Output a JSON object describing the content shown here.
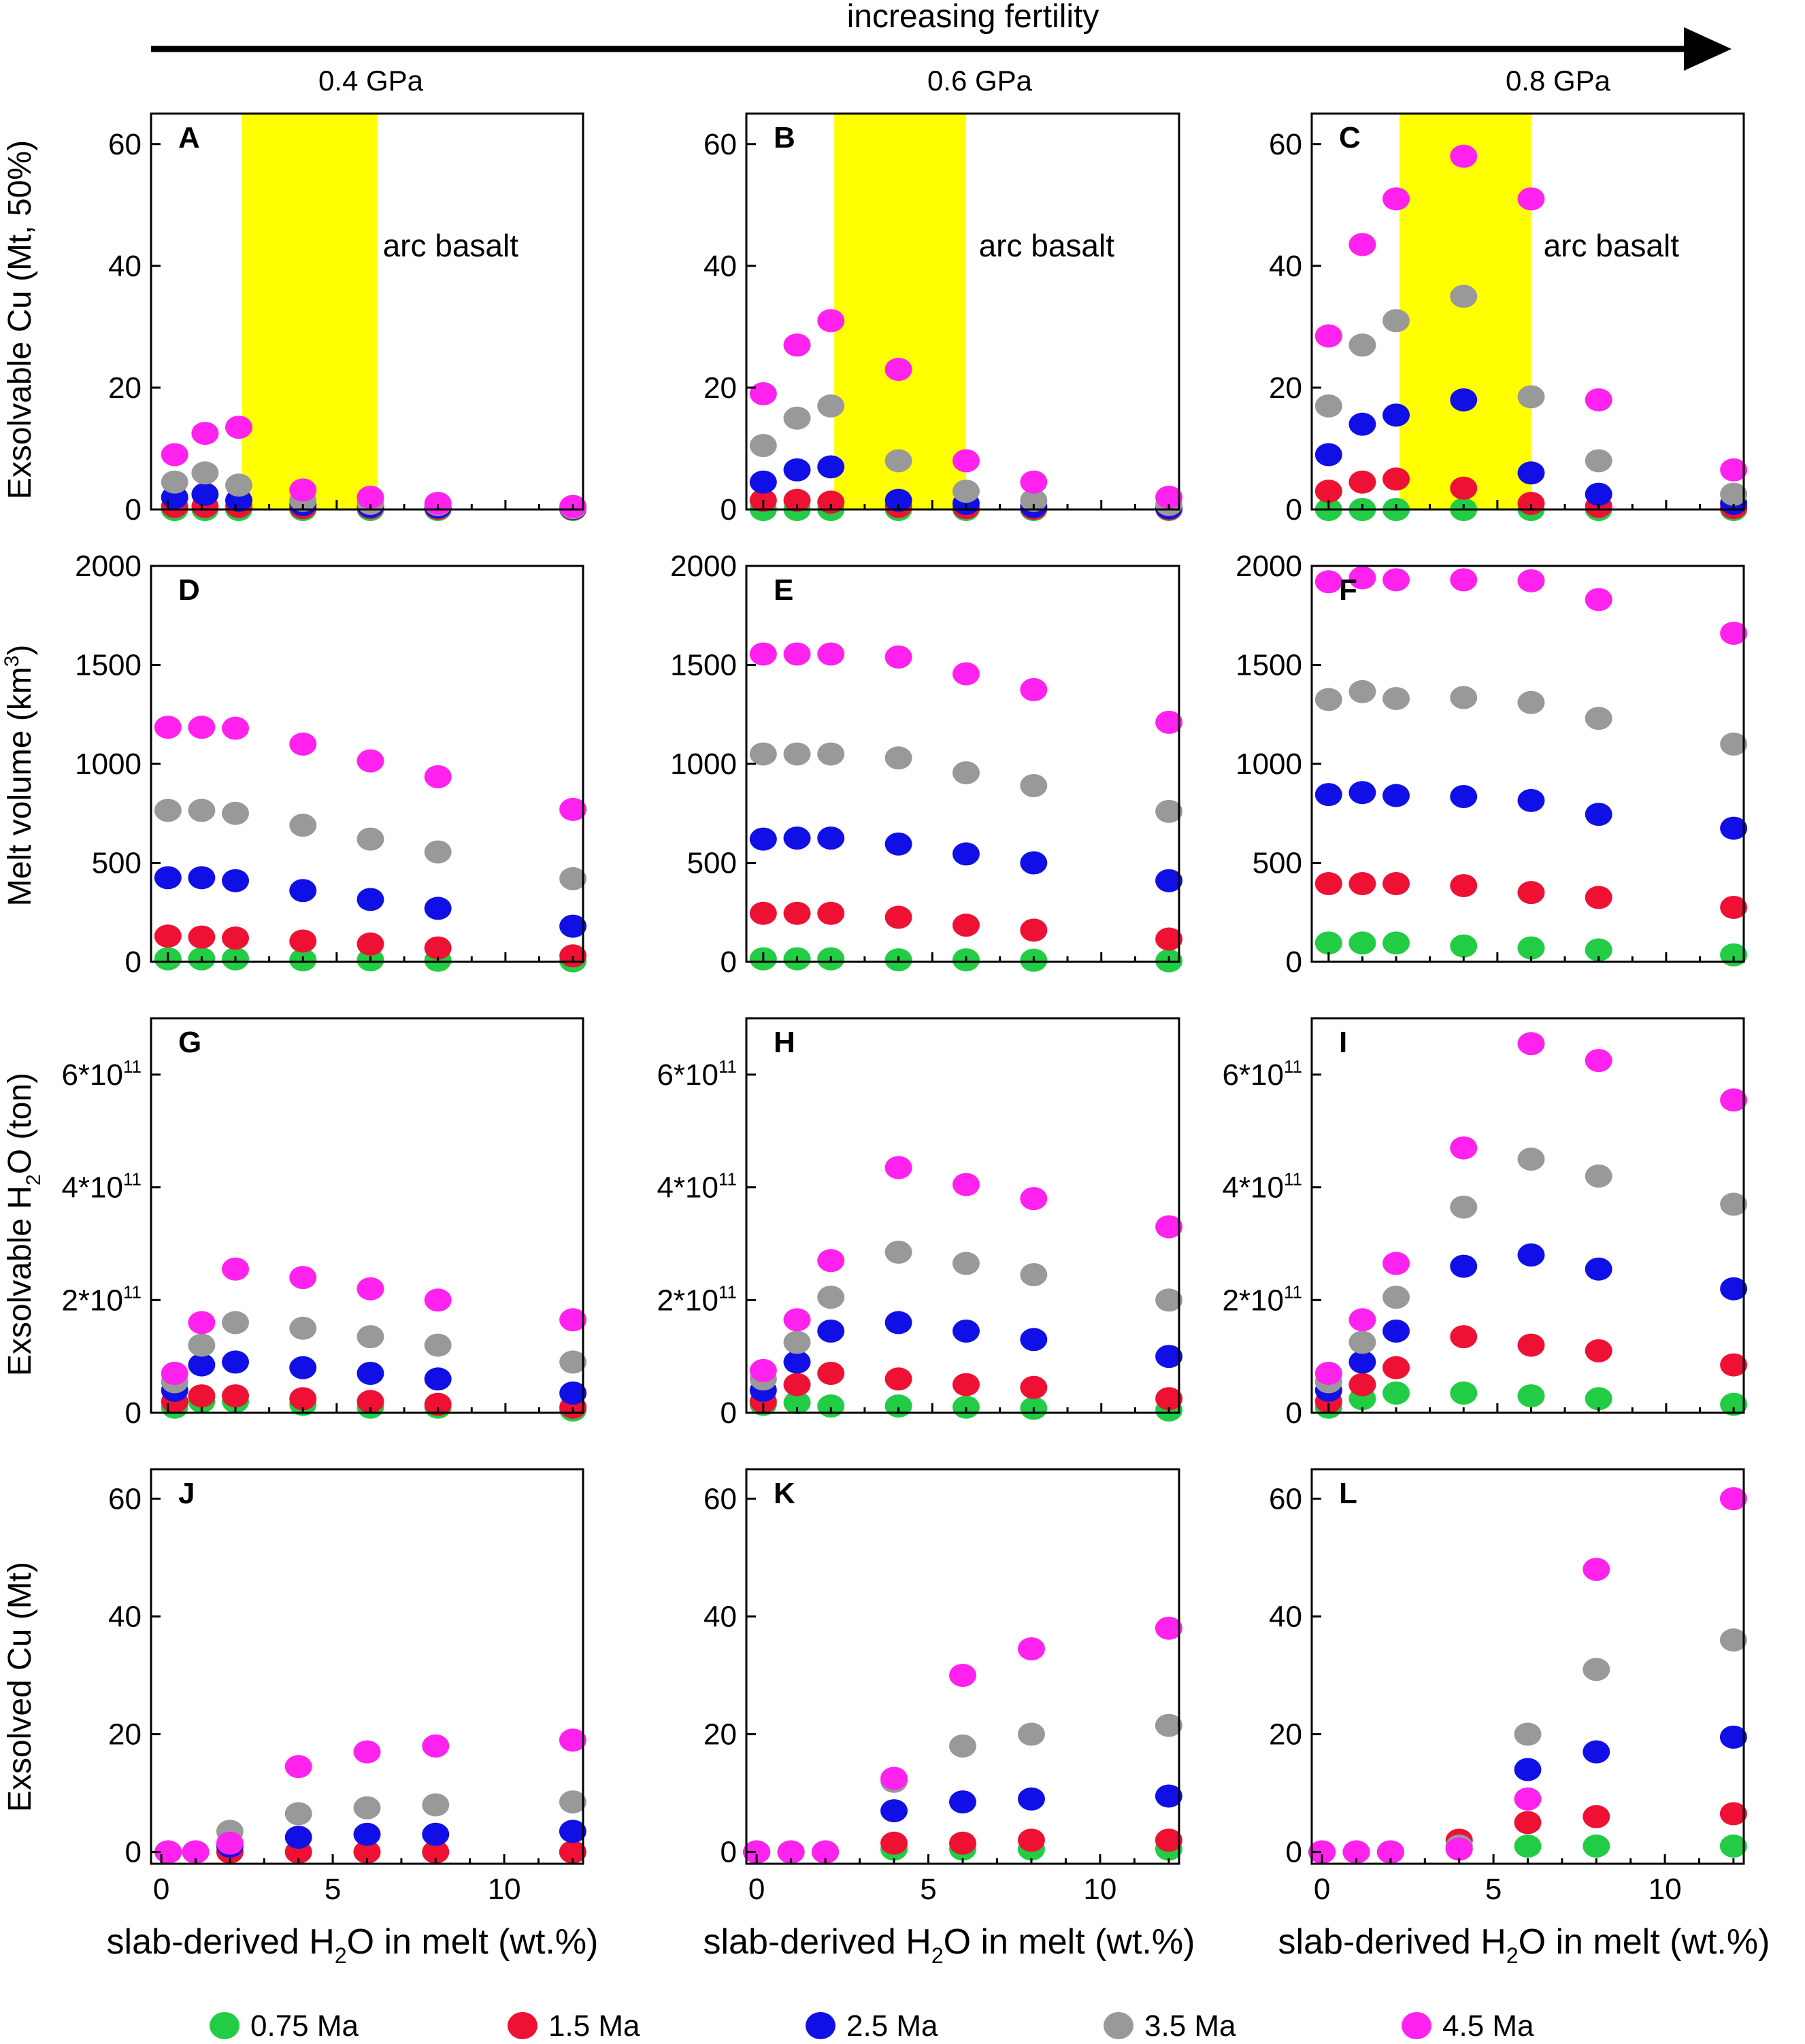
{
  "header": {
    "arrow_label": "increasing fertility",
    "pressures": [
      "0.4 GPa",
      "0.6 GPa",
      "0.8 GPa"
    ]
  },
  "row_labels": {
    "exsolvable_cu": "Exsolvable Cu (Mt, 50%)",
    "melt_volume_main": "Melt volume (km",
    "melt_volume_sup": "3",
    "melt_volume_end": ")",
    "exsolvable_h2o_main": "Exsolvable H",
    "exsolvable_h2o_sub": "2",
    "exsolvable_h2o_end": "O (ton)",
    "exsolved_cu": "Exsolved Cu (Mt)"
  },
  "x_axis_label": {
    "pre": "slab-derived H",
    "sub": "2",
    "post": "O in melt (wt.%)"
  },
  "annotation_text": "arc basalt",
  "legend": [
    {
      "label": "0.75 Ma",
      "color": "#22cc44"
    },
    {
      "label": "1.5 Ma",
      "color": "#ee1133"
    },
    {
      "label": "2.5 Ma",
      "color": "#1010e6"
    },
    {
      "label": "3.5 Ma",
      "color": "#999999"
    },
    {
      "label": "4.5 Ma",
      "color": "#ff22ee"
    }
  ],
  "highlight_color": "#ffff00",
  "chart_data": [
    {
      "id": "A",
      "type": "scatter",
      "row": 0,
      "col": 0,
      "ylim": [
        0,
        65
      ],
      "yticks": [
        0,
        20,
        40,
        60
      ],
      "xlim": [
        -0.5,
        12.3
      ],
      "xticks": [
        0,
        5,
        10
      ],
      "band": [
        2.2,
        6.2
      ],
      "x": [
        0.2,
        1.1,
        2.1,
        4,
        6,
        8,
        12
      ],
      "series": [
        {
          "name": "0.75 Ma",
          "values": [
            0,
            0,
            0,
            0,
            0,
            0,
            0
          ]
        },
        {
          "name": "1.5 Ma",
          "values": [
            0.5,
            0.5,
            0.5,
            0.3,
            0.3,
            0.2,
            0.1
          ]
        },
        {
          "name": "2.5 Ma",
          "values": [
            2,
            2.5,
            1.5,
            0.8,
            0.5,
            0.4,
            0.2
          ]
        },
        {
          "name": "3.5 Ma",
          "values": [
            4.5,
            6,
            4,
            1.5,
            1,
            0.8,
            0.3
          ]
        },
        {
          "name": "4.5 Ma",
          "values": [
            9,
            12.5,
            13.5,
            3.2,
            2,
            1,
            0.5
          ]
        }
      ]
    },
    {
      "id": "B",
      "type": "scatter",
      "row": 0,
      "col": 1,
      "ylim": [
        0,
        65
      ],
      "yticks": [
        0,
        20,
        40,
        60
      ],
      "xlim": [
        -0.5,
        12.3
      ],
      "xticks": [
        0,
        5,
        10
      ],
      "band": [
        2.1,
        6
      ],
      "x": [
        0,
        1,
        2,
        4,
        6,
        8,
        12
      ],
      "series": [
        {
          "name": "0.75 Ma",
          "values": [
            0,
            0,
            0,
            0,
            0,
            0,
            0
          ]
        },
        {
          "name": "1.5 Ma",
          "values": [
            1.5,
            1.5,
            1.2,
            0.5,
            0.3,
            0.2,
            0.1
          ]
        },
        {
          "name": "2.5 Ma",
          "values": [
            4.5,
            6.5,
            7,
            1.5,
            1,
            0.5,
            0.3
          ]
        },
        {
          "name": "3.5 Ma",
          "values": [
            10.5,
            15,
            17,
            8,
            3,
            1.5,
            0.8
          ]
        },
        {
          "name": "4.5 Ma",
          "values": [
            19,
            27,
            31,
            23,
            8,
            4.5,
            2
          ]
        }
      ]
    },
    {
      "id": "C",
      "type": "scatter",
      "row": 0,
      "col": 2,
      "ylim": [
        0,
        65
      ],
      "yticks": [
        0,
        20,
        40,
        60
      ],
      "xlim": [
        -0.5,
        12.3
      ],
      "xticks": [
        0,
        5,
        10
      ],
      "band": [
        2.1,
        6
      ],
      "x": [
        0,
        1,
        2,
        4,
        6,
        8,
        12
      ],
      "series": [
        {
          "name": "0.75 Ma",
          "values": [
            0,
            0,
            0,
            0,
            0,
            0,
            0
          ]
        },
        {
          "name": "1.5 Ma",
          "values": [
            3,
            4.5,
            5,
            3.5,
            1,
            0.5,
            0.3
          ]
        },
        {
          "name": "2.5 Ma",
          "values": [
            9,
            14,
            15.5,
            18,
            6,
            2.5,
            1
          ]
        },
        {
          "name": "3.5 Ma",
          "values": [
            17,
            27,
            31,
            35,
            18.5,
            8,
            2.5
          ]
        },
        {
          "name": "4.5 Ma",
          "values": [
            28.5,
            43.5,
            51,
            58,
            51,
            18,
            6.5
          ]
        }
      ]
    },
    {
      "id": "D",
      "type": "scatter",
      "row": 1,
      "col": 0,
      "ylim": [
        0,
        2000
      ],
      "yticks": [
        0,
        500,
        1000,
        1500,
        2000
      ],
      "xlim": [
        -0.5,
        12.3
      ],
      "xticks": [
        0,
        5,
        10
      ],
      "x": [
        0,
        1,
        2,
        4,
        6,
        8,
        12
      ],
      "series": [
        {
          "name": "0.75 Ma",
          "values": [
            15,
            15,
            15,
            10,
            10,
            8,
            5
          ]
        },
        {
          "name": "1.5 Ma",
          "values": [
            130,
            125,
            120,
            105,
            90,
            70,
            30
          ]
        },
        {
          "name": "2.5 Ma",
          "values": [
            425,
            425,
            410,
            360,
            315,
            270,
            180
          ]
        },
        {
          "name": "3.5 Ma",
          "values": [
            765,
            765,
            750,
            690,
            620,
            555,
            420
          ]
        },
        {
          "name": "4.5 Ma",
          "values": [
            1185,
            1185,
            1180,
            1100,
            1015,
            935,
            770
          ]
        }
      ]
    },
    {
      "id": "E",
      "type": "scatter",
      "row": 1,
      "col": 1,
      "ylim": [
        0,
        2000
      ],
      "yticks": [
        0,
        500,
        1000,
        1500,
        2000
      ],
      "xlim": [
        -0.5,
        12.3
      ],
      "xticks": [
        0,
        5,
        10
      ],
      "x": [
        0,
        1,
        2,
        4,
        6,
        8,
        12
      ],
      "series": [
        {
          "name": "0.75 Ma",
          "values": [
            15,
            15,
            15,
            10,
            10,
            8,
            5
          ]
        },
        {
          "name": "1.5 Ma",
          "values": [
            245,
            245,
            245,
            225,
            185,
            160,
            115
          ]
        },
        {
          "name": "2.5 Ma",
          "values": [
            620,
            625,
            625,
            595,
            545,
            500,
            410
          ]
        },
        {
          "name": "3.5 Ma",
          "values": [
            1050,
            1050,
            1050,
            1030,
            955,
            890,
            760
          ]
        },
        {
          "name": "4.5 Ma",
          "values": [
            1555,
            1555,
            1555,
            1540,
            1455,
            1375,
            1210
          ]
        }
      ]
    },
    {
      "id": "F",
      "type": "scatter",
      "row": 1,
      "col": 2,
      "ylim": [
        0,
        2000
      ],
      "yticks": [
        0,
        500,
        1000,
        1500,
        2000
      ],
      "xlim": [
        -0.5,
        12.3
      ],
      "xticks": [
        0,
        5,
        10
      ],
      "x": [
        0,
        1,
        2,
        4,
        6,
        8,
        12
      ],
      "series": [
        {
          "name": "0.75 Ma",
          "values": [
            95,
            95,
            95,
            80,
            70,
            60,
            35
          ]
        },
        {
          "name": "1.5 Ma",
          "values": [
            395,
            395,
            395,
            385,
            350,
            325,
            275
          ]
        },
        {
          "name": "2.5 Ma",
          "values": [
            845,
            855,
            840,
            835,
            815,
            745,
            675
          ]
        },
        {
          "name": "3.5 Ma",
          "values": [
            1325,
            1365,
            1330,
            1335,
            1310,
            1230,
            1100
          ]
        },
        {
          "name": "4.5 Ma",
          "values": [
            1920,
            1940,
            1930,
            1930,
            1925,
            1830,
            1660
          ]
        }
      ]
    },
    {
      "id": "G",
      "type": "scatter",
      "row": 2,
      "col": 0,
      "ylim": [
        0,
        700000000000.0
      ],
      "ytick_labels": [
        "0",
        "2*10",
        "4*10",
        "6*10"
      ],
      "ytick_exp": "11",
      "yticks": [
        0,
        200000000000.0,
        400000000000.0,
        600000000000.0
      ],
      "xlim": [
        -0.5,
        12.3
      ],
      "xticks": [
        0,
        5,
        10
      ],
      "x": [
        0.2,
        1,
        2,
        4,
        6,
        8,
        12
      ],
      "series": [
        {
          "name": "0.75 Ma",
          "values": [
            10000000000.0,
            20000000000.0,
            20000000000.0,
            15000000000.0,
            10000000000.0,
            10000000000.0,
            5000000000.0
          ]
        },
        {
          "name": "1.5 Ma",
          "values": [
            20000000000.0,
            30000000000.0,
            30000000000.0,
            25000000000.0,
            20000000000.0,
            15000000000.0,
            10000000000.0
          ]
        },
        {
          "name": "2.5 Ma",
          "values": [
            40000000000.0,
            85000000000.0,
            90000000000.0,
            80000000000.0,
            70000000000.0,
            60000000000.0,
            35000000000.0
          ]
        },
        {
          "name": "3.5 Ma",
          "values": [
            55000000000.0,
            120000000000.0,
            160000000000.0,
            150000000000.0,
            135000000000.0,
            120000000000.0,
            90000000000.0
          ]
        },
        {
          "name": "4.5 Ma",
          "values": [
            70000000000.0,
            160000000000.0,
            255000000000.0,
            240000000000.0,
            220000000000.0,
            200000000000.0,
            165000000000.0
          ]
        }
      ]
    },
    {
      "id": "H",
      "type": "scatter",
      "row": 2,
      "col": 1,
      "ylim": [
        0,
        700000000000.0
      ],
      "ytick_labels": [
        "0",
        "2*10",
        "4*10",
        "6*10"
      ],
      "ytick_exp": "11",
      "yticks": [
        0,
        200000000000.0,
        400000000000.0,
        600000000000.0
      ],
      "xlim": [
        -0.5,
        12.3
      ],
      "xticks": [
        0,
        5,
        10
      ],
      "x": [
        0,
        1,
        2,
        4,
        6,
        8,
        12
      ],
      "series": [
        {
          "name": "0.75 Ma",
          "values": [
            15000000000.0,
            18000000000.0,
            12000000000.0,
            12000000000.0,
            10000000000.0,
            8000000000.0,
            5000000000.0
          ]
        },
        {
          "name": "1.5 Ma",
          "values": [
            20000000000.0,
            50000000000.0,
            70000000000.0,
            60000000000.0,
            50000000000.0,
            45000000000.0,
            25000000000.0
          ]
        },
        {
          "name": "2.5 Ma",
          "values": [
            40000000000.0,
            90000000000.0,
            145000000000.0,
            160000000000.0,
            145000000000.0,
            130000000000.0,
            100000000000.0
          ]
        },
        {
          "name": "3.5 Ma",
          "values": [
            60000000000.0,
            125000000000.0,
            205000000000.0,
            285000000000.0,
            265000000000.0,
            245000000000.0,
            200000000000.0
          ]
        },
        {
          "name": "4.5 Ma",
          "values": [
            75000000000.0,
            165000000000.0,
            270000000000.0,
            435000000000.0,
            405000000000.0,
            380000000000.0,
            330000000000.0
          ]
        }
      ]
    },
    {
      "id": "I",
      "type": "scatter",
      "row": 2,
      "col": 2,
      "ylim": [
        0,
        700000000000.0
      ],
      "ytick_labels": [
        "0",
        "2*10",
        "4*10",
        "6*10"
      ],
      "ytick_exp": "11",
      "yticks": [
        0,
        200000000000.0,
        400000000000.0,
        600000000000.0
      ],
      "xlim": [
        -0.5,
        12.3
      ],
      "xticks": [
        0,
        5,
        10
      ],
      "x": [
        0,
        1,
        2,
        4,
        6,
        8,
        12
      ],
      "series": [
        {
          "name": "0.75 Ma",
          "values": [
            10000000000.0,
            25000000000.0,
            35000000000.0,
            35000000000.0,
            30000000000.0,
            25000000000.0,
            15000000000.0
          ]
        },
        {
          "name": "1.5 Ma",
          "values": [
            20000000000.0,
            50000000000.0,
            80000000000.0,
            135000000000.0,
            120000000000.0,
            110000000000.0,
            85000000000.0
          ]
        },
        {
          "name": "2.5 Ma",
          "values": [
            40000000000.0,
            90000000000.0,
            145000000000.0,
            260000000000.0,
            280000000000.0,
            255000000000.0,
            220000000000.0
          ]
        },
        {
          "name": "3.5 Ma",
          "values": [
            55000000000.0,
            125000000000.0,
            205000000000.0,
            365000000000.0,
            450000000000.0,
            420000000000.0,
            370000000000.0
          ]
        },
        {
          "name": "4.5 Ma",
          "values": [
            70000000000.0,
            165000000000.0,
            265000000000.0,
            470000000000.0,
            655000000000.0,
            625000000000.0,
            555000000000.0
          ]
        }
      ]
    },
    {
      "id": "J",
      "type": "scatter",
      "row": 3,
      "col": 0,
      "ylim": [
        -2,
        65
      ],
      "yticks": [
        0,
        20,
        40,
        60
      ],
      "xlim": [
        -0.3,
        12.3
      ],
      "xticks": [
        0,
        5,
        10
      ],
      "x": [
        0.2,
        1,
        2,
        4,
        6,
        8,
        12
      ],
      "series": [
        {
          "name": "0.75 Ma",
          "values": [
            0,
            0,
            0,
            0,
            0,
            0,
            0
          ]
        },
        {
          "name": "1.5 Ma",
          "values": [
            0,
            0,
            0,
            0,
            0,
            0,
            0
          ]
        },
        {
          "name": "2.5 Ma",
          "values": [
            0,
            0,
            1,
            2.5,
            3,
            3,
            3.5
          ]
        },
        {
          "name": "3.5 Ma",
          "values": [
            0,
            0,
            3.5,
            6.5,
            7.5,
            8,
            8.5
          ]
        },
        {
          "name": "4.5 Ma",
          "values": [
            0,
            0,
            1.5,
            14.5,
            17,
            18,
            19
          ]
        }
      ]
    },
    {
      "id": "K",
      "type": "scatter",
      "row": 3,
      "col": 1,
      "ylim": [
        -2,
        65
      ],
      "yticks": [
        0,
        20,
        40,
        60
      ],
      "xlim": [
        -0.3,
        12.3
      ],
      "xticks": [
        0,
        5,
        10
      ],
      "x": [
        0,
        1,
        2,
        4,
        6,
        8,
        12
      ],
      "series": [
        {
          "name": "0.75 Ma",
          "values": [
            0,
            0,
            0,
            0.5,
            0.5,
            0.5,
            0.5
          ]
        },
        {
          "name": "1.5 Ma",
          "values": [
            0,
            0,
            0,
            1.5,
            1.5,
            2,
            2
          ]
        },
        {
          "name": "2.5 Ma",
          "values": [
            0,
            0,
            0,
            7,
            8.5,
            9,
            9.5
          ]
        },
        {
          "name": "3.5 Ma",
          "values": [
            0,
            0,
            0,
            12,
            18,
            20,
            21.5
          ]
        },
        {
          "name": "4.5 Ma",
          "values": [
            0,
            0,
            0,
            12.5,
            30,
            34.5,
            38
          ]
        }
      ]
    },
    {
      "id": "L",
      "type": "scatter",
      "row": 3,
      "col": 2,
      "ylim": [
        -2,
        65
      ],
      "yticks": [
        0,
        20,
        40,
        60
      ],
      "xlim": [
        -0.3,
        12.3
      ],
      "xticks": [
        0,
        5,
        10
      ],
      "x": [
        0,
        1,
        2,
        4,
        6,
        8,
        12
      ],
      "series": [
        {
          "name": "0.75 Ma",
          "values": [
            0,
            0,
            0,
            0.5,
            1,
            1,
            1
          ]
        },
        {
          "name": "1.5 Ma",
          "values": [
            0,
            0,
            0,
            2,
            5,
            6,
            6.5
          ]
        },
        {
          "name": "2.5 Ma",
          "values": [
            0,
            0,
            0,
            1,
            14,
            17,
            19.5
          ]
        },
        {
          "name": "3.5 Ma",
          "values": [
            0,
            0,
            0,
            1,
            20,
            31,
            36
          ]
        },
        {
          "name": "4.5 Ma",
          "values": [
            0,
            0,
            0,
            0.5,
            9,
            48,
            60
          ]
        }
      ]
    }
  ]
}
